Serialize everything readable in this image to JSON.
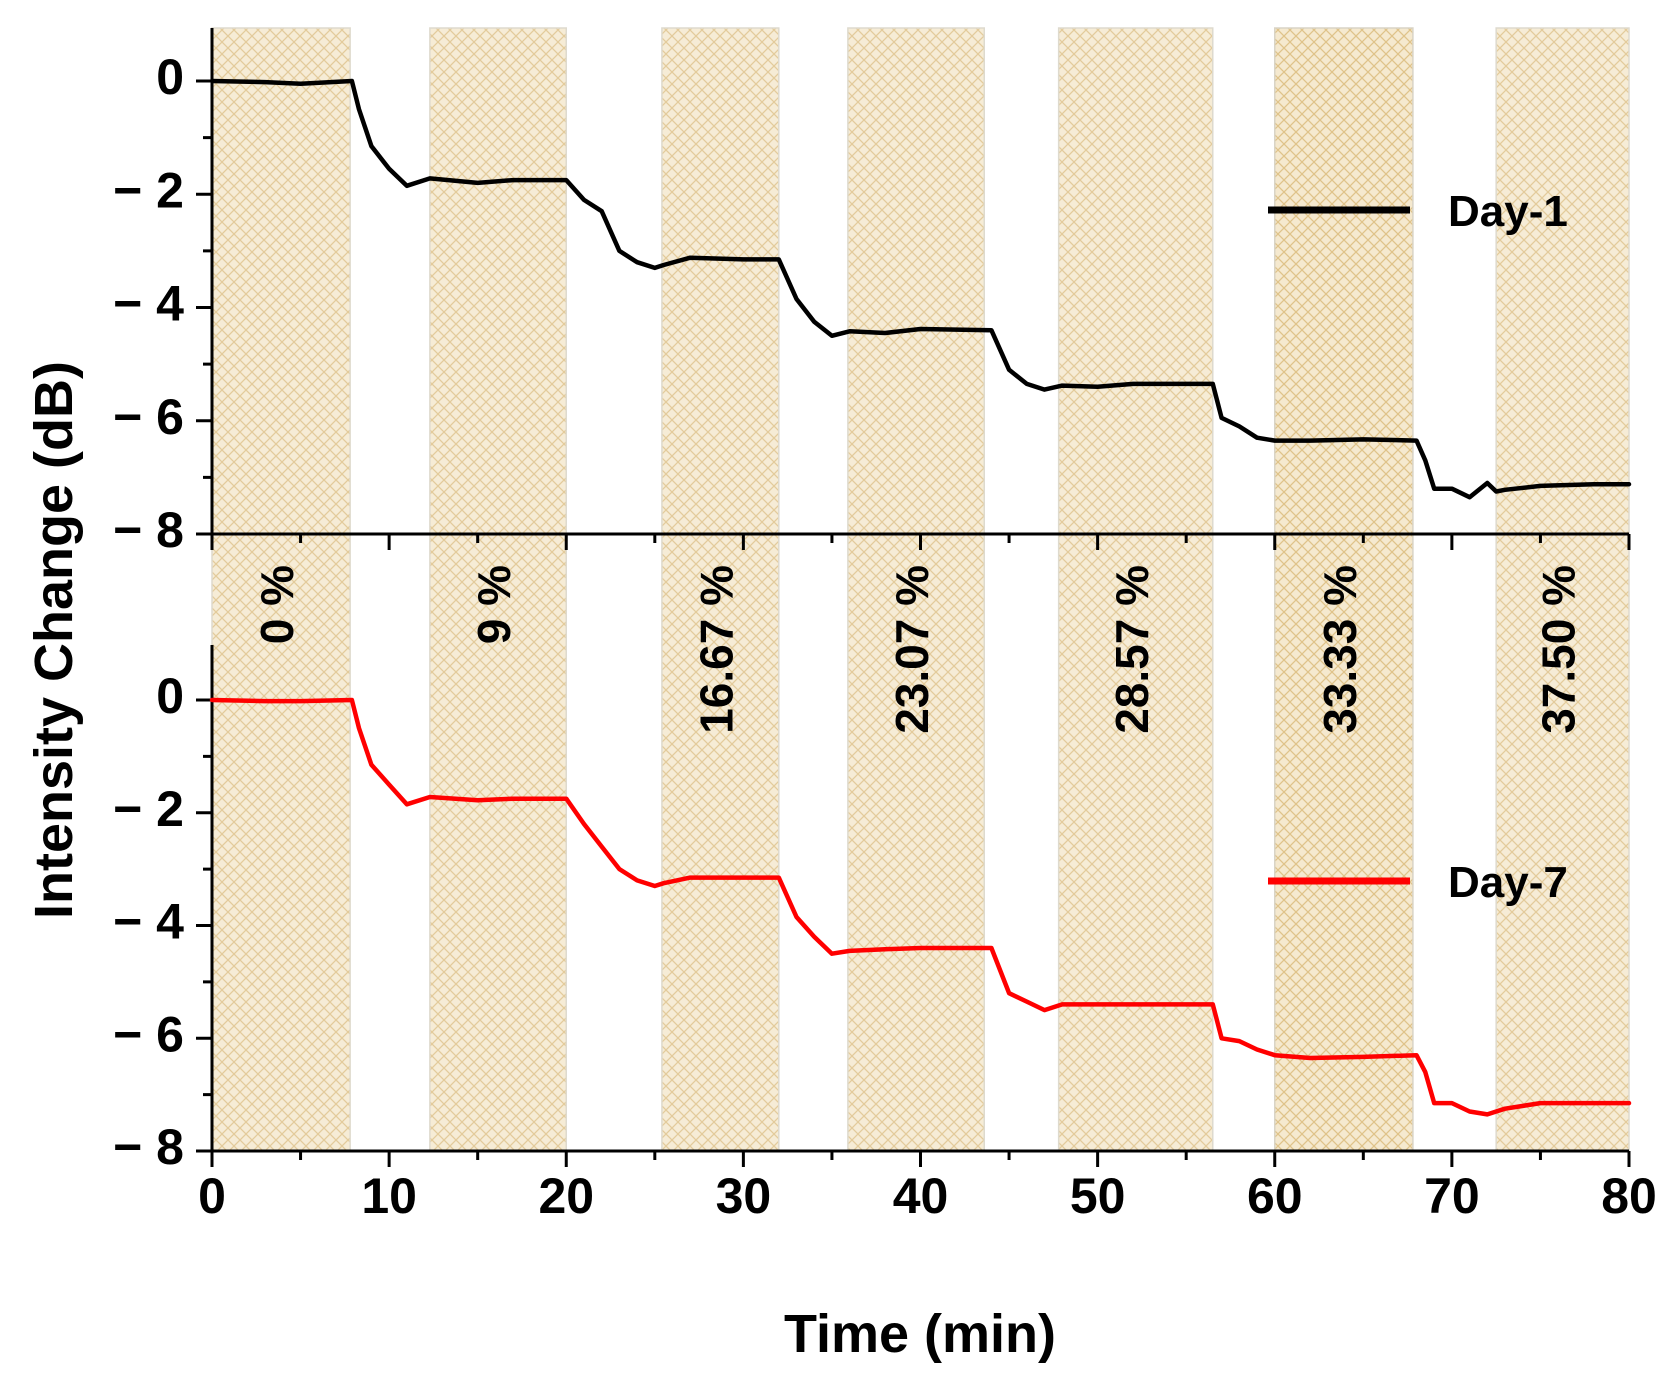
{
  "chart_data": {
    "type": "line",
    "xlabel": "Time (min)",
    "ylabel": "Intensity Change (dB)",
    "xlim": [
      0,
      80
    ],
    "ylim": [
      -8,
      1
    ],
    "x_ticks": [
      0,
      10,
      20,
      30,
      40,
      50,
      60,
      70,
      80
    ],
    "x_tick_labels": [
      "0",
      "10",
      "20",
      "30",
      "40",
      "50",
      "60",
      "70",
      "80"
    ],
    "y_ticks": [
      0,
      -2,
      -4,
      -6,
      -8
    ],
    "y_tick_labels": [
      "0",
      "− 2",
      "− 4",
      "− 6",
      "− 8"
    ],
    "bands": [
      {
        "label": "0 %",
        "start": 0,
        "end": 7.8
      },
      {
        "label": "9 %",
        "start": 12.3,
        "end": 20
      },
      {
        "label": "16.67 %",
        "start": 25.4,
        "end": 32
      },
      {
        "label": "23.07 %",
        "start": 35.9,
        "end": 43.6
      },
      {
        "label": "28.57 %",
        "start": 47.8,
        "end": 56.5
      },
      {
        "label": "33.33 %",
        "start": 60,
        "end": 67.8
      },
      {
        "label": "37.50 %",
        "start": 72.5,
        "end": 80
      }
    ],
    "series": [
      {
        "name": "Day-1",
        "color": "#000000",
        "panel": "top",
        "x": [
          0,
          3,
          5,
          7.9,
          8.3,
          9,
          10,
          11,
          12.3,
          15,
          17,
          20,
          21,
          22,
          23,
          24,
          25,
          25.5,
          27,
          30,
          32,
          33,
          34,
          35,
          36,
          38,
          40,
          44,
          45,
          46,
          47,
          48,
          50,
          52,
          56.5,
          57,
          58,
          59,
          60,
          62,
          65,
          68,
          68.5,
          69,
          70,
          71,
          72,
          72.5,
          73,
          75,
          78,
          80
        ],
        "y": [
          0,
          -0.02,
          -0.05,
          0,
          -0.5,
          -1.15,
          -1.55,
          -1.85,
          -1.72,
          -1.8,
          -1.75,
          -1.75,
          -2.1,
          -2.3,
          -3.0,
          -3.2,
          -3.3,
          -3.25,
          -3.12,
          -3.15,
          -3.15,
          -3.85,
          -4.25,
          -4.5,
          -4.42,
          -4.45,
          -4.38,
          -4.4,
          -5.1,
          -5.35,
          -5.45,
          -5.38,
          -5.4,
          -5.35,
          -5.35,
          -5.95,
          -6.1,
          -6.3,
          -6.35,
          -6.35,
          -6.33,
          -6.35,
          -6.7,
          -7.2,
          -7.2,
          -7.35,
          -7.1,
          -7.25,
          -7.22,
          -7.15,
          -7.12,
          -7.12
        ]
      },
      {
        "name": "Day-7",
        "color": "#ff0000",
        "panel": "bottom",
        "x": [
          0,
          3,
          5,
          7.9,
          8.3,
          9,
          10,
          11,
          12.3,
          15,
          17,
          20,
          21,
          22,
          23,
          24,
          25,
          25.5,
          27,
          30,
          32,
          33,
          34,
          35,
          36,
          38,
          40,
          44,
          45,
          46,
          47,
          48,
          50,
          52,
          56.5,
          57,
          58,
          59,
          60,
          62,
          65,
          68,
          68.5,
          69,
          70,
          71,
          72,
          72.5,
          73,
          75,
          78,
          80
        ],
        "y": [
          0,
          -0.02,
          -0.02,
          0,
          -0.5,
          -1.15,
          -1.5,
          -1.85,
          -1.72,
          -1.78,
          -1.75,
          -1.75,
          -2.2,
          -2.6,
          -3.0,
          -3.2,
          -3.3,
          -3.25,
          -3.15,
          -3.15,
          -3.15,
          -3.85,
          -4.2,
          -4.5,
          -4.45,
          -4.42,
          -4.4,
          -4.4,
          -5.2,
          -5.35,
          -5.5,
          -5.4,
          -5.4,
          -5.4,
          -5.4,
          -6.0,
          -6.05,
          -6.2,
          -6.3,
          -6.35,
          -6.33,
          -6.3,
          -6.6,
          -7.15,
          -7.15,
          -7.3,
          -7.35,
          -7.3,
          -7.25,
          -7.15,
          -7.15,
          -7.15
        ]
      }
    ],
    "legend": [
      {
        "label": "Day-1",
        "color": "#000000",
        "position": "top-right"
      },
      {
        "label": "Day-7",
        "color": "#ff0000",
        "position": "bottom-right"
      }
    ]
  }
}
